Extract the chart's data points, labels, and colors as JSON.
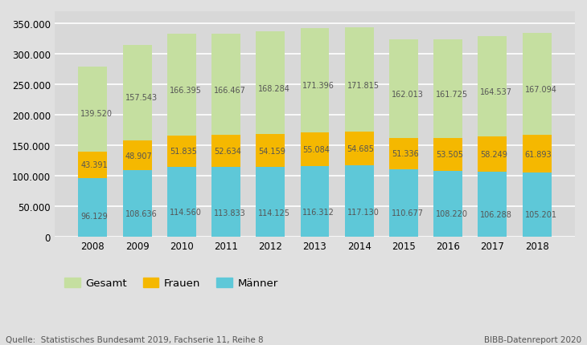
{
  "years": [
    2008,
    2009,
    2010,
    2011,
    2012,
    2013,
    2014,
    2015,
    2016,
    2017,
    2018
  ],
  "gesamt": [
    279040,
    315086,
    332790,
    332934,
    336568,
    342792,
    343630,
    324026,
    323450,
    329074,
    334188
  ],
  "frauen": [
    43391,
    48907,
    51835,
    52634,
    54159,
    55084,
    54685,
    51336,
    53505,
    58249,
    61893
  ],
  "maenner": [
    96129,
    108636,
    114560,
    113833,
    114125,
    116312,
    117130,
    110677,
    108220,
    106288,
    105201
  ],
  "gesamt_labels": [
    139520,
    157543,
    166395,
    166467,
    168284,
    171396,
    171815,
    162013,
    161725,
    164537,
    167094
  ],
  "frauen_labels": [
    43391,
    48907,
    51835,
    52634,
    54159,
    55084,
    54685,
    51336,
    53505,
    58249,
    61893
  ],
  "maenner_labels": [
    96129,
    108636,
    114560,
    113833,
    114125,
    116312,
    117130,
    110677,
    108220,
    106288,
    105201
  ],
  "color_gesamt": "#c5dfa0",
  "color_frauen": "#f5b800",
  "color_maenner": "#5ec8d8",
  "background_color": "#e0e0e0",
  "plot_background": "#d8d8d8",
  "ylim": [
    0,
    370000
  ],
  "yticks": [
    0,
    50000,
    100000,
    150000,
    200000,
    250000,
    300000,
    350000
  ],
  "legend_labels": [
    "Gesamt",
    "Frauen",
    "Männer"
  ],
  "source_text": "Quelle:  Statistisches Bundesamt 2019, Fachserie 11, Reihe 8",
  "bibb_text": "BIBB-Datenreport 2020",
  "bar_width": 0.65,
  "label_fontsize": 7.0,
  "label_color_green": "#555555",
  "label_color_orange": "#555555",
  "label_color_teal": "#555555",
  "tick_fontsize": 8.5,
  "legend_fontsize": 9.5
}
